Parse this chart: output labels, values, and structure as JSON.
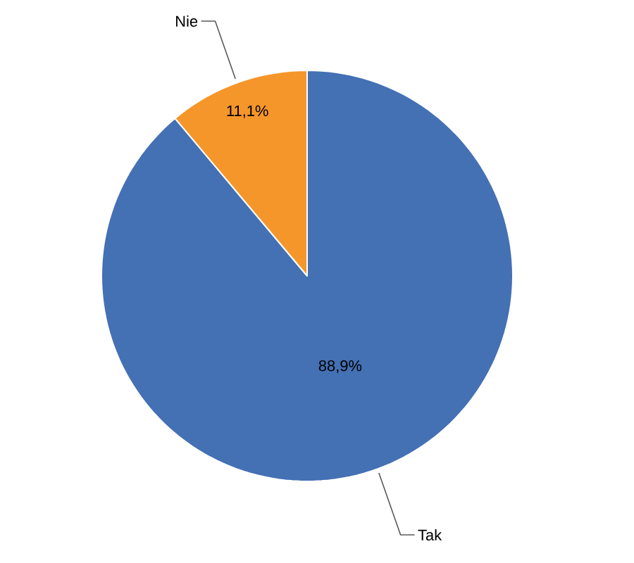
{
  "chart_data": {
    "type": "pie",
    "categories": [
      "Tak",
      "Nie"
    ],
    "values": [
      88.9,
      11.1
    ],
    "colors": [
      "#4470b4",
      "#f5962a"
    ],
    "value_labels": [
      "88,9%",
      "11,1%"
    ]
  }
}
